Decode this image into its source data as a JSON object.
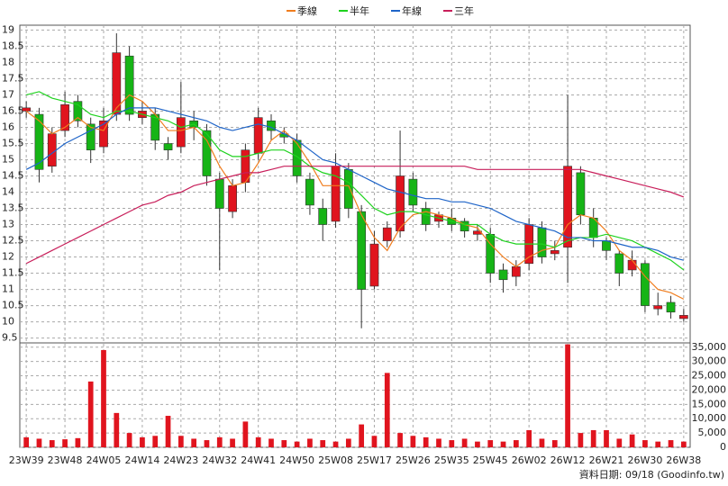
{
  "chart_data": [
    {
      "type": "candlestick",
      "categories": [
        "23W39",
        null,
        null,
        "23W48",
        null,
        null,
        "24W05",
        null,
        null,
        "24W14",
        null,
        null,
        "24W23",
        null,
        null,
        "24W32",
        null,
        null,
        "24W41",
        null,
        null,
        "24W50",
        null,
        null,
        "25W08",
        null,
        null,
        "25W17",
        null,
        null,
        "25W26",
        null,
        null,
        "25W35",
        null,
        null,
        "25W45",
        null,
        null,
        "26W02",
        null,
        null,
        "26W12",
        null,
        null,
        "26W21",
        null,
        null,
        "26W30",
        null,
        null,
        "26W38"
      ],
      "open": [
        16.5,
        16.4,
        14.8,
        15.9,
        16.8,
        16.1,
        15.4,
        16.4,
        18.2,
        16.3,
        16.4,
        15.5,
        15.4,
        16.2,
        15.9,
        14.4,
        13.4,
        14.3,
        15.2,
        16.2,
        15.8,
        15.6,
        14.4,
        13.5,
        13.1,
        14.7,
        13.4,
        11.1,
        12.5,
        12.8,
        14.4,
        13.5,
        13.1,
        13.2,
        13.1,
        12.7,
        12.7,
        11.6,
        11.4,
        11.8,
        12.9,
        12.1,
        12.3,
        14.6,
        13.2,
        12.5,
        12.1,
        11.6,
        11.8,
        10.4,
        10.6,
        10.1
      ],
      "high": [
        16.8,
        16.6,
        16.0,
        17.1,
        17.0,
        16.3,
        16.6,
        18.9,
        18.5,
        16.8,
        16.6,
        15.7,
        17.4,
        16.5,
        16.1,
        14.6,
        14.4,
        15.5,
        16.6,
        16.4,
        16.0,
        15.8,
        14.6,
        13.8,
        15.2,
        14.9,
        13.6,
        12.8,
        13.1,
        15.9,
        14.6,
        13.7,
        13.4,
        13.5,
        13.2,
        13.0,
        12.9,
        11.8,
        11.9,
        13.2,
        13.1,
        12.5,
        17.0,
        14.8,
        13.5,
        12.6,
        12.2,
        12.2,
        11.9,
        10.9,
        10.8,
        10.4
      ],
      "low": [
        16.3,
        14.3,
        14.6,
        15.7,
        16.0,
        14.9,
        15.2,
        16.2,
        16.2,
        16.1,
        15.3,
        15.0,
        15.2,
        15.6,
        14.2,
        11.6,
        13.2,
        14.0,
        15.0,
        15.6,
        15.5,
        14.3,
        13.3,
        12.5,
        12.9,
        13.2,
        9.8,
        11.0,
        12.3,
        12.6,
        13.4,
        12.8,
        12.9,
        12.8,
        12.6,
        12.5,
        11.2,
        10.9,
        11.1,
        11.6,
        11.8,
        11.9,
        11.2,
        13.0,
        12.3,
        11.9,
        11.1,
        11.4,
        10.3,
        10.2,
        10.1,
        10.0
      ],
      "close": [
        16.6,
        14.7,
        15.8,
        16.7,
        16.2,
        15.3,
        16.2,
        18.3,
        16.4,
        16.5,
        15.6,
        15.3,
        16.3,
        16.0,
        14.5,
        13.5,
        14.2,
        15.3,
        16.3,
        15.9,
        15.7,
        14.5,
        13.6,
        13.0,
        14.8,
        13.5,
        11.0,
        12.4,
        12.9,
        14.5,
        13.6,
        13.0,
        13.3,
        13.0,
        12.8,
        12.8,
        11.5,
        11.3,
        11.7,
        13.0,
        12.0,
        12.2,
        14.8,
        13.3,
        12.6,
        12.2,
        11.5,
        11.9,
        10.5,
        10.5,
        10.3,
        10.2
      ],
      "up_color": "#e0141e",
      "down_color": "#16b416",
      "series": [
        {
          "name": "季線",
          "color": "#f07d1e",
          "values": [
            16.5,
            16.2,
            15.8,
            16.0,
            16.3,
            16.0,
            15.9,
            16.6,
            17.0,
            16.8,
            16.4,
            15.9,
            15.9,
            16.0,
            15.6,
            14.8,
            14.2,
            14.3,
            14.9,
            15.6,
            15.9,
            15.5,
            14.9,
            14.2,
            14.2,
            14.2,
            13.3,
            12.6,
            12.2,
            12.9,
            13.3,
            13.4,
            13.3,
            13.2,
            13.0,
            12.9,
            12.4,
            12.0,
            11.7,
            12.0,
            12.2,
            12.3,
            13.0,
            13.3,
            13.2,
            12.8,
            12.2,
            11.9,
            11.4,
            11.0,
            10.9,
            10.7
          ]
        },
        {
          "name": "半年",
          "color": "#1ed21e",
          "values": [
            17.0,
            17.1,
            16.9,
            16.8,
            16.7,
            16.4,
            16.3,
            16.5,
            16.5,
            16.4,
            16.3,
            16.2,
            16.0,
            16.1,
            15.8,
            15.3,
            15.1,
            15.1,
            15.2,
            15.3,
            15.3,
            15.1,
            14.8,
            14.6,
            14.5,
            14.3,
            13.9,
            13.5,
            13.3,
            13.4,
            13.4,
            13.3,
            13.2,
            13.1,
            13.0,
            13.0,
            12.7,
            12.5,
            12.4,
            12.4,
            12.4,
            12.3,
            12.5,
            12.6,
            12.6,
            12.7,
            12.6,
            12.5,
            12.3,
            12.1,
            11.9,
            11.6
          ]
        },
        {
          "name": "年線",
          "color": "#1e64c8",
          "values": [
            14.7,
            14.9,
            15.2,
            15.5,
            15.7,
            15.9,
            16.1,
            16.4,
            16.6,
            16.6,
            16.6,
            16.5,
            16.4,
            16.3,
            16.2,
            16.0,
            15.9,
            16.0,
            16.1,
            16.0,
            15.8,
            15.6,
            15.3,
            15.0,
            14.9,
            14.7,
            14.5,
            14.3,
            14.1,
            14.0,
            13.9,
            13.8,
            13.8,
            13.7,
            13.7,
            13.6,
            13.5,
            13.3,
            13.1,
            13.0,
            12.9,
            12.8,
            12.6,
            12.6,
            12.5,
            12.5,
            12.4,
            12.3,
            12.3,
            12.2,
            12.0,
            11.9
          ]
        },
        {
          "name": "三年",
          "color": "#c81e5a",
          "values": [
            11.8,
            12.0,
            12.2,
            12.4,
            12.6,
            12.8,
            13.0,
            13.2,
            13.4,
            13.6,
            13.7,
            13.9,
            14.0,
            14.2,
            14.3,
            14.4,
            14.5,
            14.6,
            14.6,
            14.7,
            14.8,
            14.8,
            14.8,
            14.8,
            14.8,
            14.8,
            14.8,
            14.8,
            14.8,
            14.8,
            14.8,
            14.8,
            14.8,
            14.8,
            14.8,
            14.7,
            14.7,
            14.7,
            14.7,
            14.7,
            14.7,
            14.7,
            14.7,
            14.7,
            14.6,
            14.5,
            14.4,
            14.3,
            14.2,
            14.1,
            14.0,
            13.85
          ]
        }
      ],
      "ylim": [
        9.35,
        19.15
      ],
      "yticks": [
        9.5,
        10,
        10.5,
        11,
        11.5,
        12,
        12.5,
        13,
        13.5,
        14,
        14.5,
        15,
        15.5,
        16,
        16.5,
        17,
        17.5,
        18,
        18.5,
        19
      ],
      "grid": true,
      "footer": "資料日期: 09/18 (Goodinfo.tw)"
    },
    {
      "type": "bar",
      "color": "#e0141e",
      "values": [
        3500,
        3000,
        2500,
        2800,
        3200,
        23000,
        34000,
        12000,
        5000,
        3500,
        4000,
        11000,
        4000,
        3000,
        2500,
        3500,
        3000,
        9000,
        3500,
        3000,
        2500,
        2000,
        3000,
        2500,
        2000,
        3000,
        8000,
        4000,
        26000,
        5000,
        4000,
        3500,
        3000,
        2500,
        3000,
        2000,
        2500,
        2000,
        2500,
        6000,
        3000,
        2500,
        36000,
        5000,
        6000,
        6000,
        3000,
        4500,
        2500,
        2000,
        2500,
        2000
      ],
      "ylim": [
        0,
        36500
      ],
      "yticks": [
        0,
        {
          "value": 5000,
          "label": "5,000"
        },
        {
          "value": 10000,
          "label": "10,000"
        },
        {
          "value": 15000,
          "label": "15,000"
        },
        {
          "value": 20000,
          "label": "20,000"
        },
        {
          "value": 25000,
          "label": "25,000"
        },
        {
          "value": 30000,
          "label": "30,000"
        },
        {
          "value": 35000,
          "label": "35,000"
        }
      ],
      "grid": true
    }
  ]
}
